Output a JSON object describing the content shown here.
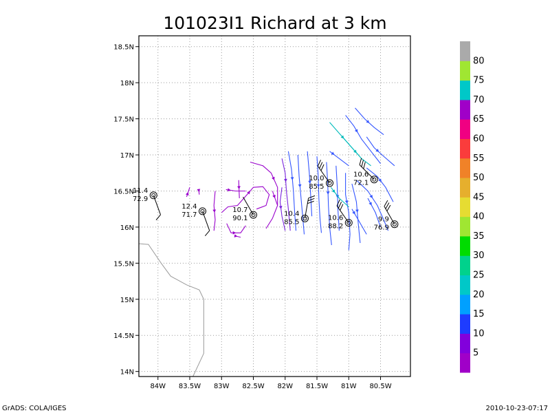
{
  "chart_data": {
    "type": "streamline-map",
    "title": "101023I1  Richard at 3 km",
    "x_ticks": [
      {
        "value": -84.0,
        "label": "84W"
      },
      {
        "value": -83.5,
        "label": "83.5W"
      },
      {
        "value": -83.0,
        "label": "83W"
      },
      {
        "value": -82.5,
        "label": "82.5W"
      },
      {
        "value": -82.0,
        "label": "82W"
      },
      {
        "value": -81.5,
        "label": "81.5W"
      },
      {
        "value": -81.0,
        "label": "81W"
      },
      {
        "value": -80.5,
        "label": "80.5W"
      }
    ],
    "y_ticks": [
      {
        "value": 14.0,
        "label": "14N"
      },
      {
        "value": 14.5,
        "label": "14.5N"
      },
      {
        "value": 15.0,
        "label": "15N"
      },
      {
        "value": 15.5,
        "label": "15.5N"
      },
      {
        "value": 16.0,
        "label": "16N"
      },
      {
        "value": 16.5,
        "label": "16.5N"
      },
      {
        "value": 17.0,
        "label": "17N"
      },
      {
        "value": 17.5,
        "label": "17.5N"
      },
      {
        "value": 18.0,
        "label": "18N"
      },
      {
        "value": 18.5,
        "label": "18.5N"
      }
    ],
    "xlim": [
      -84.3,
      -80.03
    ],
    "ylim": [
      13.93,
      18.65
    ],
    "grid": true,
    "coastline": [
      [
        -84.3,
        15.77
      ],
      [
        -84.15,
        15.76
      ],
      [
        -83.95,
        15.5
      ],
      [
        -83.8,
        15.32
      ],
      [
        -83.55,
        15.2
      ],
      [
        -83.35,
        15.13
      ],
      [
        -83.28,
        15.0
      ],
      [
        -83.28,
        14.25
      ],
      [
        -83.45,
        13.93
      ]
    ],
    "stations": [
      {
        "lon": -84.07,
        "lat": 16.44,
        "val1": "11.4",
        "val2": "72.9",
        "wind_dir": 160,
        "barbs": 1
      },
      {
        "lon": -83.3,
        "lat": 16.22,
        "val1": "12.4",
        "val2": "71.7",
        "wind_dir": 160,
        "barbs": 1
      },
      {
        "lon": -82.5,
        "lat": 16.17,
        "val1": "10.7",
        "val2": "90.1",
        "wind_dir": 330,
        "barbs": 0
      },
      {
        "lon": -81.69,
        "lat": 16.12,
        "val1": "10.4",
        "val2": "85.5",
        "wind_dir": 10,
        "barbs": 3
      },
      {
        "lon": -81.3,
        "lat": 16.61,
        "val1": "10.0",
        "val2": "85.5",
        "wind_dir": 325,
        "barbs": 3
      },
      {
        "lon": -81.0,
        "lat": 16.06,
        "val1": "10.6",
        "val2": "88.2",
        "wind_dir": 325,
        "barbs": 3
      },
      {
        "lon": -80.6,
        "lat": 16.66,
        "val1": "10.6",
        "val2": "72.1",
        "wind_dir": 315,
        "barbs": 3
      },
      {
        "lon": -80.28,
        "lat": 16.04,
        "val1": "9.9",
        "val2": "76.9",
        "wind_dir": 330,
        "barbs": 3
      }
    ],
    "streamlines": [
      {
        "c": "#9900cc",
        "pts": [
          [
            -83.55,
            16.42
          ],
          [
            -83.5,
            16.55
          ]
        ]
      },
      {
        "c": "#9900cc",
        "pts": [
          [
            -83.36,
            16.52
          ],
          [
            -83.35,
            16.45
          ]
        ]
      },
      {
        "c": "#9900cc",
        "pts": [
          [
            -83.1,
            16.5
          ],
          [
            -83.12,
            16.3
          ],
          [
            -83.1,
            16.1
          ],
          [
            -83.12,
            15.95
          ]
        ]
      },
      {
        "c": "#9900cc",
        "pts": [
          [
            -82.93,
            16.52
          ],
          [
            -82.78,
            16.5
          ],
          [
            -82.62,
            16.5
          ]
        ]
      },
      {
        "c": "#9900cc",
        "pts": [
          [
            -82.73,
            16.65
          ],
          [
            -82.72,
            16.4
          ]
        ]
      },
      {
        "c": "#9900cc",
        "pts": [
          [
            -83.0,
            16.2
          ],
          [
            -82.9,
            16.28
          ],
          [
            -82.75,
            16.3
          ],
          [
            -82.6,
            16.45
          ],
          [
            -82.5,
            16.55
          ],
          [
            -82.35,
            16.56
          ],
          [
            -82.25,
            16.45
          ],
          [
            -82.3,
            16.3
          ],
          [
            -82.45,
            16.25
          ]
        ]
      },
      {
        "c": "#9900cc",
        "pts": [
          [
            -82.92,
            16.05
          ],
          [
            -82.85,
            15.92
          ],
          [
            -82.7,
            15.92
          ],
          [
            -82.62,
            16.02
          ]
        ]
      },
      {
        "c": "#9900cc",
        "pts": [
          [
            -82.8,
            15.88
          ],
          [
            -82.7,
            15.86
          ]
        ]
      },
      {
        "c": "#9900cc",
        "pts": [
          [
            -82.55,
            16.9
          ],
          [
            -82.35,
            16.85
          ],
          [
            -82.22,
            16.75
          ],
          [
            -82.12,
            16.55
          ],
          [
            -82.12,
            16.3
          ],
          [
            -82.2,
            16.12
          ],
          [
            -82.3,
            15.98
          ]
        ]
      },
      {
        "c": "#9900cc",
        "pts": [
          [
            -82.2,
            16.5
          ],
          [
            -82.12,
            16.3
          ]
        ]
      },
      {
        "c": "#7722dd",
        "pts": [
          [
            -82.05,
            16.55
          ],
          [
            -82.08,
            16.35
          ],
          [
            -82.05,
            16.15
          ],
          [
            -82.0,
            15.95
          ]
        ]
      },
      {
        "c": "#7722dd",
        "pts": [
          [
            -82.05,
            16.95
          ],
          [
            -82.0,
            16.75
          ],
          [
            -81.98,
            16.5
          ],
          [
            -81.95,
            16.25
          ],
          [
            -81.92,
            15.95
          ]
        ]
      },
      {
        "c": "#3355ff",
        "pts": [
          [
            -81.95,
            17.05
          ],
          [
            -81.9,
            16.8
          ],
          [
            -81.87,
            16.5
          ],
          [
            -81.85,
            16.2
          ],
          [
            -81.83,
            15.95
          ]
        ]
      },
      {
        "c": "#3355ff",
        "pts": [
          [
            -81.8,
            17.0
          ],
          [
            -81.78,
            16.7
          ],
          [
            -81.75,
            16.4
          ],
          [
            -81.72,
            16.1
          ],
          [
            -81.7,
            15.9
          ]
        ]
      },
      {
        "c": "#3355ff",
        "pts": [
          [
            -81.65,
            17.05
          ],
          [
            -81.62,
            16.75
          ],
          [
            -81.6,
            16.45
          ],
          [
            -81.58,
            16.15
          ]
        ]
      },
      {
        "c": "#3355ff",
        "pts": [
          [
            -81.5,
            16.98
          ],
          [
            -81.48,
            16.7
          ],
          [
            -81.47,
            16.4
          ],
          [
            -81.45,
            16.1
          ],
          [
            -81.43,
            15.92
          ]
        ]
      },
      {
        "c": "#3355ff",
        "pts": [
          [
            -81.35,
            16.9
          ],
          [
            -81.33,
            16.6
          ],
          [
            -81.32,
            16.3
          ],
          [
            -81.3,
            16.0
          ],
          [
            -81.27,
            15.75
          ]
        ]
      },
      {
        "c": "#3355ff",
        "pts": [
          [
            -81.2,
            16.85
          ],
          [
            -81.18,
            16.55
          ],
          [
            -81.17,
            16.25
          ],
          [
            -81.15,
            15.95
          ]
        ]
      },
      {
        "c": "#3355ff",
        "pts": [
          [
            -81.05,
            16.75
          ],
          [
            -81.05,
            16.45
          ],
          [
            -81.0,
            16.2
          ],
          [
            -80.98,
            15.9
          ],
          [
            -81.0,
            15.68
          ]
        ]
      },
      {
        "c": "#3355ff",
        "pts": [
          [
            -80.95,
            16.6
          ],
          [
            -80.88,
            16.35
          ],
          [
            -80.85,
            16.05
          ],
          [
            -80.82,
            15.78
          ]
        ]
      },
      {
        "c": "#3355ff",
        "pts": [
          [
            -81.3,
            17.05
          ],
          [
            -81.15,
            16.95
          ],
          [
            -81.0,
            16.85
          ]
        ]
      },
      {
        "c": "#3355ff",
        "pts": [
          [
            -81.05,
            17.55
          ],
          [
            -80.92,
            17.4
          ],
          [
            -80.8,
            17.22
          ],
          [
            -80.65,
            17.05
          ],
          [
            -80.5,
            16.88
          ]
        ]
      },
      {
        "c": "#3355ff",
        "pts": [
          [
            -80.9,
            17.65
          ],
          [
            -80.75,
            17.5
          ],
          [
            -80.6,
            17.38
          ],
          [
            -80.45,
            17.28
          ]
        ]
      },
      {
        "c": "#3355ff",
        "pts": [
          [
            -80.72,
            17.25
          ],
          [
            -80.6,
            17.1
          ],
          [
            -80.45,
            16.98
          ],
          [
            -80.28,
            16.85
          ]
        ]
      },
      {
        "c": "#00bbbb",
        "pts": [
          [
            -81.3,
            17.45
          ],
          [
            -81.15,
            17.3
          ],
          [
            -81.0,
            17.15
          ],
          [
            -80.85,
            17.0
          ]
        ]
      },
      {
        "c": "#00bbbb",
        "pts": [
          [
            -81.1,
            17.25
          ],
          [
            -80.95,
            17.1
          ],
          [
            -80.8,
            16.95
          ],
          [
            -80.65,
            16.85
          ]
        ]
      },
      {
        "c": "#00bbbb",
        "pts": [
          [
            -81.28,
            16.55
          ],
          [
            -81.15,
            16.4
          ],
          [
            -81.0,
            16.28
          ]
        ]
      },
      {
        "c": "#3355ff",
        "pts": [
          [
            -80.88,
            16.65
          ],
          [
            -80.7,
            16.5
          ],
          [
            -80.55,
            16.3
          ],
          [
            -80.45,
            16.1
          ],
          [
            -80.38,
            15.95
          ]
        ]
      },
      {
        "c": "#3355ff",
        "pts": [
          [
            -80.72,
            16.82
          ],
          [
            -80.55,
            16.7
          ],
          [
            -80.42,
            16.55
          ],
          [
            -80.3,
            16.35
          ]
        ]
      },
      {
        "c": "#3355ff",
        "pts": [
          [
            -80.95,
            16.25
          ],
          [
            -80.85,
            16.1
          ],
          [
            -80.72,
            15.9
          ]
        ]
      },
      {
        "c": "#3355ff",
        "pts": [
          [
            -80.7,
            16.4
          ],
          [
            -80.58,
            16.2
          ],
          [
            -80.5,
            16.0
          ]
        ]
      }
    ],
    "colorbar": {
      "labels": [
        "5",
        "10",
        "15",
        "20",
        "25",
        "30",
        "35",
        "40",
        "45",
        "50",
        "55",
        "60",
        "65",
        "70",
        "75",
        "80"
      ],
      "colors": [
        "#a000c8",
        "#8200dc",
        "#1e3cff",
        "#00a0ff",
        "#00c8c8",
        "#00d28c",
        "#00dc00",
        "#a0e632",
        "#e6dc32",
        "#e6af2d",
        "#f08228",
        "#fa3c3c",
        "#f00082",
        "#a000c8",
        "#00c8c8",
        "#a0e632",
        "#aaaaaa"
      ]
    }
  },
  "footer": {
    "left": "GrADS: COLA/IGES",
    "right": "2010-10-23-07:17"
  }
}
